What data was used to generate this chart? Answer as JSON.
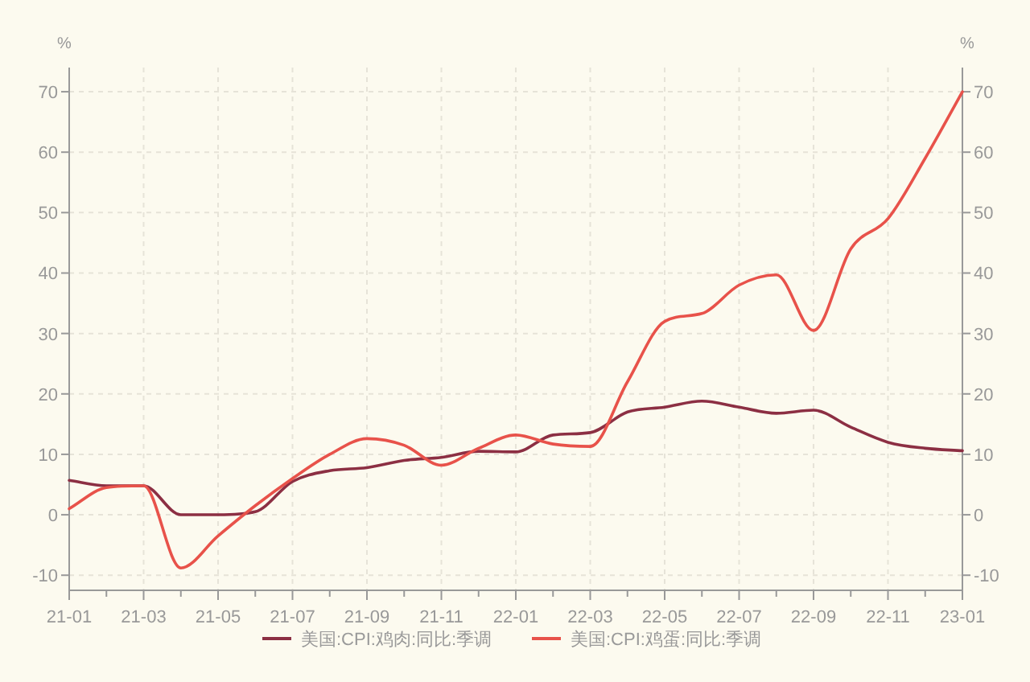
{
  "chart_data": {
    "type": "line",
    "ylabel": "%",
    "y2label": "%",
    "categories": [
      "21-01",
      null,
      "21-03",
      null,
      "21-05",
      null,
      "21-07",
      null,
      "21-09",
      null,
      "21-11",
      null,
      "22-01",
      null,
      "22-03",
      null,
      "22-05",
      null,
      "22-07",
      null,
      "22-09",
      null,
      "22-11",
      null,
      "23-01"
    ],
    "series": [
      {
        "name": "美国:CPI:鸡肉:同比:季调",
        "color": "#8c2f43",
        "values": [
          5.7,
          4.8,
          4.8,
          0,
          0,
          0.5,
          5.5,
          7.3,
          7.8,
          9,
          9.5,
          10.5,
          10.4,
          13.2,
          13.6,
          17,
          17.8,
          18.8,
          17.8,
          16.8,
          17.3,
          14.5,
          12,
          11,
          10.6
        ]
      },
      {
        "name": "美国:CPI:鸡蛋:同比:季调",
        "color": "#e8524a",
        "values": [
          1,
          4.5,
          4.8,
          -8.8,
          -3.5,
          1.5,
          6,
          10,
          12.6,
          11.5,
          8.2,
          11,
          13.2,
          11.7,
          11.3,
          22,
          32,
          33.3,
          38,
          39.7,
          30.5,
          44,
          49,
          59,
          70
        ]
      }
    ],
    "ylim": [
      -12.5,
      74
    ],
    "yticks": [
      -10,
      0,
      10,
      20,
      30,
      40,
      50,
      60,
      70
    ],
    "y2lim": [
      -12.5,
      74
    ],
    "y2ticks": [
      -10,
      0,
      10,
      20,
      30,
      40,
      50,
      60,
      70
    ],
    "grid": true,
    "legend": "bottom",
    "marker": "none",
    "line_style": "solid"
  }
}
